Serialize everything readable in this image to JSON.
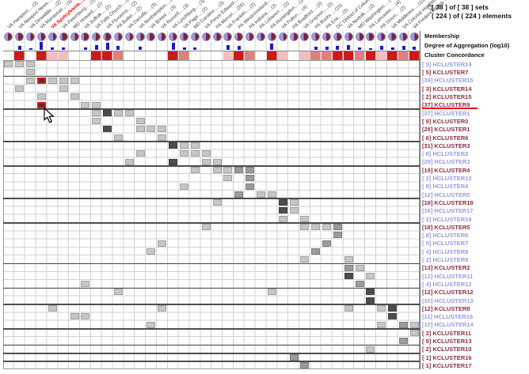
{
  "title": {
    "icon": "small-ring-icon",
    "line1": "[ 38 ] of [ 38 ] sets",
    "line2": "( 224 ) of ( 224 ) elements"
  },
  "strips": {
    "membership_label": "Membership",
    "aggregation_label": "Degree of Aggregation (log10)",
    "concordance_label": "Cluster Concordance"
  },
  "columns": [
    {
      "label": "VA Hampton.....(2)",
      "red": false,
      "membership_blue": 0.45,
      "bar": 0,
      "concordance": 0
    },
    {
      "label": "VA Newport News.....(5)",
      "red": false,
      "membership_blue": 0.35,
      "bar": 5,
      "concordance": 3
    },
    {
      "label": "VA Dinwiddie.....(2)",
      "red": false,
      "membership_blue": 0.5,
      "bar": 2,
      "concordance": 0
    },
    {
      "label": "VA Manassas.....(3)",
      "red": false,
      "membership_blue": 0.45,
      "bar": 10,
      "concordance": 3
    },
    {
      "label": "VA Spotsylvania.....(39)",
      "red": true,
      "membership_blue": 0.55,
      "bar": 3,
      "concordance": 1
    },
    {
      "label": "VA Petersburg.....(3)",
      "red": false,
      "membership_blue": 0.3,
      "bar": 3,
      "concordance": 1
    },
    {
      "label": "MD Howard.....(2)",
      "red": false,
      "membership_blue": 0.5,
      "bar": 0,
      "concordance": 0
    },
    {
      "label": "VA Suffolk.....(2)",
      "red": false,
      "membership_blue": 0.35,
      "bar": 3,
      "concordance": 0
    },
    {
      "label": "VA Falls Church.....(2)",
      "red": false,
      "membership_blue": 0.45,
      "bar": 6,
      "concordance": 3
    },
    {
      "label": "VA Fluvanna.....(2)",
      "red": false,
      "membership_blue": 0.3,
      "bar": 9,
      "concordance": 3
    },
    {
      "label": "PA Butler.....(2)",
      "red": false,
      "membership_blue": 0.5,
      "bar": 5,
      "concordance": 2
    },
    {
      "label": "VA Danville.....(3)",
      "red": false,
      "membership_blue": 0.55,
      "bar": 0,
      "concordance": 0
    },
    {
      "label": "VA Northampton.....(6)",
      "red": false,
      "membership_blue": 0.5,
      "bar": 4,
      "concordance": 0
    },
    {
      "label": "VA Bristol.....(3)",
      "red": false,
      "membership_blue": 0.35,
      "bar": 0,
      "concordance": 0
    },
    {
      "label": "VA Russell.....(3)",
      "red": false,
      "membership_blue": 0.45,
      "bar": 0,
      "concordance": 0
    },
    {
      "label": "VA Lynchburg.....(3)",
      "red": false,
      "membership_blue": 0.5,
      "bar": 9,
      "concordance": 3
    },
    {
      "label": "VA Page.....(2)",
      "red": false,
      "membership_blue": 0.4,
      "bar": 3,
      "concordance": 2
    },
    {
      "label": "MD Caroline.....(3)",
      "red": false,
      "membership_blue": 0.5,
      "bar": 3,
      "concordance": 0
    },
    {
      "label": "VA Prince Edward.....(3)",
      "red": false,
      "membership_blue": 0.45,
      "bar": 0,
      "concordance": 0
    },
    {
      "label": "PA Mercer.....(26)",
      "red": false,
      "membership_blue": 0.4,
      "bar": 0,
      "concordance": 0
    },
    {
      "label": "VA Franklin.....(2)",
      "red": false,
      "membership_blue": 0.5,
      "bar": 6,
      "concordance": 1
    },
    {
      "label": "PA Westmoreland.....(3)",
      "red": false,
      "membership_blue": 0.35,
      "bar": 5,
      "concordance": 3
    },
    {
      "label": "PA Indiana.....(2)",
      "red": false,
      "membership_blue": 0.45,
      "bar": 0,
      "concordance": 2
    },
    {
      "label": "PA Lebanon.....(2)",
      "red": false,
      "membership_blue": 0.5,
      "bar": 0,
      "concordance": 0
    },
    {
      "label": "PA Huntingdon.....(10)",
      "red": false,
      "membership_blue": 0.4,
      "bar": 8,
      "concordance": 3
    },
    {
      "label": "VA Fulton.....(4)",
      "red": false,
      "membership_blue": 0.55,
      "bar": 0,
      "concordance": 1
    },
    {
      "label": "PA Bradford.....(2)",
      "red": false,
      "membership_blue": 0.45,
      "bar": 0,
      "concordance": 0
    },
    {
      "label": "VA Grayson.....(2)",
      "red": false,
      "membership_blue": 0.4,
      "bar": 0,
      "concordance": 1
    },
    {
      "label": "PA Bucks.....(15)",
      "red": false,
      "membership_blue": 0.5,
      "bar": 4,
      "concordance": 2
    },
    {
      "label": "PA Erie.....(2)",
      "red": false,
      "membership_blue": 0.45,
      "bar": 4,
      "concordance": 2
    },
    {
      "label": "DC District of Columbia.....(2)",
      "red": false,
      "membership_blue": 0.4,
      "bar": 5,
      "concordance": 3
    },
    {
      "label": "VA Norfolk.....(2)",
      "red": false,
      "membership_blue": 0.5,
      "bar": 6,
      "concordance": 3
    },
    {
      "label": "MD Washington.....(4)",
      "red": false,
      "membership_blue": 0.45,
      "bar": 3,
      "concordance": 2
    },
    {
      "label": "PA Lancaster.....(4)",
      "red": false,
      "membership_blue": 0.35,
      "bar": 2,
      "concordance": 3
    },
    {
      "label": "PA Union.....(2)",
      "red": false,
      "membership_blue": 0.5,
      "bar": 5,
      "concordance": 1
    },
    {
      "label": "VA Middlesex.....(10)",
      "red": false,
      "membership_blue": 0.4,
      "bar": 3,
      "concordance": 3
    },
    {
      "label": "VA Colonial Heights.....(2)",
      "red": false,
      "membership_blue": 0.45,
      "bar": 5,
      "concordance": 2
    },
    {
      "label": "VA Fredericksburg.....(2)",
      "red": false,
      "membership_blue": 0.5,
      "bar": 4,
      "concordance": 3
    }
  ],
  "rows": [
    {
      "label": "[ 5] HCLUSTER19",
      "type": "H",
      "selected": false
    },
    {
      "label": "[ 5] KCLUSTER7",
      "type": "K",
      "selected": false
    },
    {
      "label": "[39] HCLUSTER15",
      "type": "H",
      "selected": false
    },
    {
      "label": "[ 3] KCLUSTER14",
      "type": "K",
      "selected": false
    },
    {
      "label": "[ 2] KCLUSTER15",
      "type": "K",
      "selected": false
    },
    {
      "label": "[37] KCLUSTER9",
      "type": "K",
      "selected": true
    },
    {
      "label": "[37] HCLUSTER1",
      "type": "H",
      "selected": false
    },
    {
      "label": "[ 9] KCLUSTER0",
      "type": "K",
      "selected": false
    },
    {
      "label": "[28] KCLUSTER1",
      "type": "K",
      "selected": false
    },
    {
      "label": "[ 6] KCLUSTER6",
      "type": "K",
      "selected": false
    },
    {
      "label": "[31] KCLUSTER3",
      "type": "K",
      "selected": false
    },
    {
      "label": "[ 8] HCLUSTER2",
      "type": "H",
      "selected": false
    },
    {
      "label": "[29] HCLUSTER3",
      "type": "H",
      "selected": false
    },
    {
      "label": "[19] KCLUSTER4",
      "type": "K",
      "selected": false
    },
    {
      "label": "[ 2] HCLUSTER10",
      "type": "H",
      "selected": false
    },
    {
      "label": "[ 8] HCLUSTER4",
      "type": "H",
      "selected": false
    },
    {
      "label": "[12] HCLUSTER5",
      "type": "H",
      "selected": false
    },
    {
      "label": "[18] KCLUSTER18",
      "type": "K",
      "selected": false
    },
    {
      "label": "[16] HCLUSTER17",
      "type": "H",
      "selected": false
    },
    {
      "label": "[ 2] HCLUSTER18",
      "type": "H",
      "selected": false
    },
    {
      "label": "[18] KCLUSTER5",
      "type": "K",
      "selected": false
    },
    {
      "label": "[ 8] HCLUSTER6",
      "type": "H",
      "selected": false
    },
    {
      "label": "[ 5] HCLUSTER7",
      "type": "H",
      "selected": false
    },
    {
      "label": "[ 4] HCLUSTER8",
      "type": "H",
      "selected": false
    },
    {
      "label": "[ 2] HCLUSTER9",
      "type": "H",
      "selected": false
    },
    {
      "label": "[13] KCLUSTER2",
      "type": "K",
      "selected": false
    },
    {
      "label": "[12] HCLUSTER11",
      "type": "H",
      "selected": false
    },
    {
      "label": "[ 4] HCLUSTER12",
      "type": "H",
      "selected": false
    },
    {
      "label": "[12] KCLUSTER12",
      "type": "K",
      "selected": false
    },
    {
      "label": "[10] HCLUSTER13",
      "type": "H",
      "selected": false
    },
    {
      "label": "[12] KCLUSTER8",
      "type": "K",
      "selected": false
    },
    {
      "label": "[11] HCLUSTER16",
      "type": "H",
      "selected": false
    },
    {
      "label": "[10] HCLUSTER14",
      "type": "H",
      "selected": false
    },
    {
      "label": "[ 2] KCLUSTER11",
      "type": "K",
      "selected": false
    },
    {
      "label": "[ 5] KCLUSTER13",
      "type": "K",
      "selected": false
    },
    {
      "label": "[ 2] KCLUSTER10",
      "type": "K",
      "selected": false
    },
    {
      "label": "[ 1] KCLUSTER16",
      "type": "K",
      "selected": false
    },
    {
      "label": "[ 1] KCLUSTER17",
      "type": "K",
      "selected": false
    }
  ],
  "matrix_cells": [
    [
      1,
      1,
      "L"
    ],
    [
      1,
      2,
      "L"
    ],
    [
      1,
      3,
      "L"
    ],
    [
      2,
      3,
      "L"
    ],
    [
      3,
      3,
      "L"
    ],
    [
      3,
      4,
      "R"
    ],
    [
      3,
      5,
      "L"
    ],
    [
      3,
      6,
      "L"
    ],
    [
      3,
      7,
      "L"
    ],
    [
      4,
      2,
      "L"
    ],
    [
      4,
      6,
      "L"
    ],
    [
      5,
      4,
      "L"
    ],
    [
      5,
      7,
      "L"
    ],
    [
      6,
      4,
      "R"
    ],
    [
      6,
      8,
      "L"
    ],
    [
      6,
      9,
      "L"
    ],
    [
      7,
      9,
      "L"
    ],
    [
      7,
      10,
      "D"
    ],
    [
      7,
      11,
      "L"
    ],
    [
      7,
      12,
      "L"
    ],
    [
      8,
      9,
      "L"
    ],
    [
      8,
      13,
      "L"
    ],
    [
      9,
      10,
      "D"
    ],
    [
      9,
      13,
      "L"
    ],
    [
      9,
      14,
      "L"
    ],
    [
      9,
      15,
      "L"
    ],
    [
      10,
      11,
      "L"
    ],
    [
      10,
      15,
      "L"
    ],
    [
      11,
      16,
      "D"
    ],
    [
      11,
      17,
      "L"
    ],
    [
      11,
      18,
      "L"
    ],
    [
      12,
      13,
      "L"
    ],
    [
      12,
      17,
      "L"
    ],
    [
      12,
      18,
      "L"
    ],
    [
      12,
      19,
      "L"
    ],
    [
      13,
      12,
      "L"
    ],
    [
      13,
      16,
      "D"
    ],
    [
      13,
      19,
      "L"
    ],
    [
      13,
      20,
      "L"
    ],
    [
      14,
      18,
      "L"
    ],
    [
      14,
      20,
      "L"
    ],
    [
      14,
      21,
      "L"
    ],
    [
      14,
      22,
      "M"
    ],
    [
      14,
      23,
      "M"
    ],
    [
      15,
      21,
      "L"
    ],
    [
      15,
      23,
      "M"
    ],
    [
      16,
      17,
      "L"
    ],
    [
      16,
      23,
      "M"
    ],
    [
      17,
      22,
      "M"
    ],
    [
      17,
      24,
      "L"
    ],
    [
      17,
      25,
      "L"
    ],
    [
      18,
      20,
      "L"
    ],
    [
      18,
      26,
      "D"
    ],
    [
      18,
      27,
      "L"
    ],
    [
      19,
      26,
      "D"
    ],
    [
      19,
      27,
      "L"
    ],
    [
      20,
      26,
      "L"
    ],
    [
      20,
      28,
      "L"
    ],
    [
      21,
      19,
      "L"
    ],
    [
      21,
      28,
      "L"
    ],
    [
      21,
      29,
      "L"
    ],
    [
      21,
      30,
      "L"
    ],
    [
      21,
      31,
      "M"
    ],
    [
      22,
      31,
      "M"
    ],
    [
      23,
      15,
      "L"
    ],
    [
      23,
      30,
      "M"
    ],
    [
      24,
      14,
      "L"
    ],
    [
      24,
      29,
      "M"
    ],
    [
      25,
      28,
      "L"
    ],
    [
      25,
      32,
      "L"
    ],
    [
      26,
      32,
      "M"
    ],
    [
      26,
      33,
      "L"
    ],
    [
      27,
      32,
      "D"
    ],
    [
      27,
      34,
      "L"
    ],
    [
      28,
      8,
      "L"
    ],
    [
      28,
      33,
      "M"
    ],
    [
      29,
      11,
      "L"
    ],
    [
      29,
      25,
      "L"
    ],
    [
      29,
      34,
      "D"
    ],
    [
      30,
      34,
      "D"
    ],
    [
      31,
      5,
      "L"
    ],
    [
      31,
      15,
      "L"
    ],
    [
      31,
      32,
      "L"
    ],
    [
      31,
      35,
      "L"
    ],
    [
      31,
      36,
      "D"
    ],
    [
      32,
      7,
      "L"
    ],
    [
      32,
      8,
      "L"
    ],
    [
      32,
      36,
      "D"
    ],
    [
      33,
      14,
      "L"
    ],
    [
      33,
      35,
      "L"
    ],
    [
      33,
      37,
      "M"
    ],
    [
      33,
      38,
      "L"
    ],
    [
      34,
      38,
      "L"
    ],
    [
      35,
      37,
      "M"
    ],
    [
      36,
      34,
      "L"
    ],
    [
      37,
      27,
      "M"
    ],
    [
      38,
      28,
      "M"
    ]
  ],
  "group_separators_after_rows": [
    2,
    6,
    10,
    13,
    17,
    20,
    25,
    28,
    30,
    33,
    35,
    36,
    37
  ],
  "selection": {
    "selected_row_index": 6,
    "selected_column_index": 4,
    "cursor_cell": [
      6,
      4
    ]
  },
  "colors": {
    "h_label": "#9a9ae2",
    "k_label": "#8e2d46",
    "selection_red": "#ee1111",
    "header_red": "#ee0000",
    "membership_blue": "#9a99dd",
    "membership_maroon": "#822139",
    "aggregation_bar": "#1b1bd0",
    "concordance_levels": [
      "#ffffff",
      "#f2bfbf",
      "#e07f7f",
      "#cc1a1a"
    ],
    "cell_levels": {
      "L": "#c6c6c6",
      "M": "#9b9b9b",
      "D": "#4d4d4d",
      "R": "#3c3c3c"
    }
  }
}
